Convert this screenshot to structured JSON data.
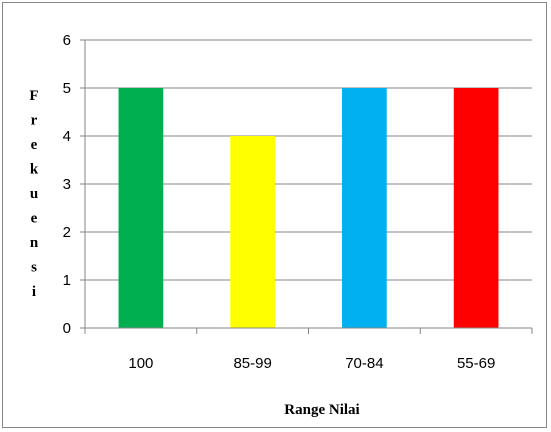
{
  "chart_data": {
    "type": "bar",
    "categories": [
      "100",
      "85-99",
      "70-84",
      "55-69"
    ],
    "values": [
      5,
      4,
      5,
      5
    ],
    "bar_colors": [
      "#00b050",
      "#ffff00",
      "#00b0f0",
      "#ff0000"
    ],
    "ylim": [
      0,
      6
    ],
    "yticks": [
      "0",
      "1",
      "2",
      "3",
      "4",
      "5",
      "6"
    ],
    "xlabel": "Range Nilai",
    "ylabel": "Frekuensi",
    "grid": true,
    "legend": "none",
    "gridline_color": "#868686",
    "axis_color": "#868686"
  }
}
